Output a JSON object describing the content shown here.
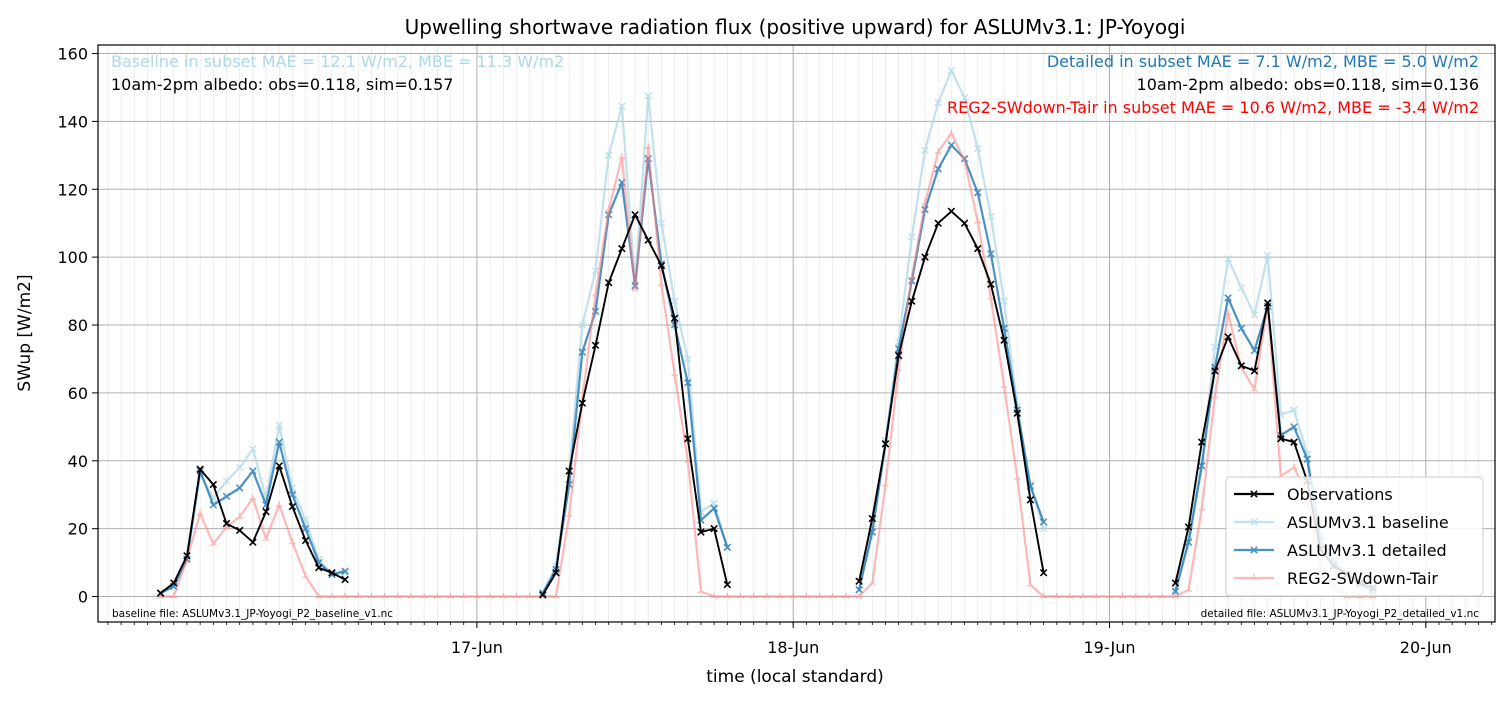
{
  "chart_data": {
    "type": "line",
    "title": "Upwelling shortwave radiation flux (positive upward) for ASLUMv3.1: JP-Yoyogi",
    "xlabel": "time (local standard)",
    "ylabel": "SWup [W/m2]",
    "x_unit": "hours",
    "x_ticks": [
      {
        "label": "17-Jun",
        "value": 24
      },
      {
        "label": "18-Jun",
        "value": 48
      },
      {
        "label": "19-Jun",
        "value": 72
      },
      {
        "label": "20-Jun",
        "value": 96
      }
    ],
    "xlim": [
      -4.75,
      101.25
    ],
    "ylim": [
      -7.5,
      162.5
    ],
    "y_ticks": [
      0,
      20,
      40,
      60,
      80,
      100,
      120,
      140,
      160
    ],
    "grid": true,
    "legend_position": "lower right",
    "annotations": {
      "top_left_1": "Baseline in subset MAE = 12.1 W/m2, MBE = 11.3 W/m2",
      "top_left_2": "10am-2pm albedo: obs=0.118, sim=0.157",
      "top_right_1": "Detailed in subset MAE = 7.1 W/m2, MBE = 5.0 W/m2",
      "top_right_2": "10am-2pm albedo: obs=0.118, sim=0.136",
      "top_right_3": "REG2-SWdown-Tair in subset MAE = 10.6 W/m2, MBE = -3.4 W/m2",
      "bottom_left": "baseline file: ASLUMv3.1_JP-Yoyogi_P2_baseline_v1.nc",
      "bottom_right": "detailed file: ASLUMv3.1_JP-Yoyogi_P2_detailed_v1.nc"
    },
    "series": [
      {
        "name": "Observations",
        "color": "#000000",
        "alpha": 1.0,
        "marker": "x",
        "points": [
          [
            0,
            1
          ],
          [
            1,
            4
          ],
          [
            2,
            12
          ],
          [
            3,
            37.5
          ],
          [
            4,
            33
          ],
          [
            5,
            21.5
          ],
          [
            6,
            19.5
          ],
          [
            7,
            16
          ],
          [
            8,
            25
          ],
          [
            9,
            38.5
          ],
          [
            10,
            26.5
          ],
          [
            11,
            16.5
          ],
          [
            12,
            8.5
          ],
          [
            13,
            7
          ],
          [
            14,
            5
          ],
          [
            29,
            0.5
          ],
          [
            30,
            7
          ],
          [
            31,
            37
          ],
          [
            32,
            57
          ],
          [
            33,
            74
          ],
          [
            34,
            92.5
          ],
          [
            35,
            102.5
          ],
          [
            36,
            112.5
          ],
          [
            37,
            105
          ],
          [
            38,
            97.5
          ],
          [
            39,
            82
          ],
          [
            40,
            46.5
          ],
          [
            41,
            19
          ],
          [
            42,
            20
          ],
          [
            43,
            3.5
          ],
          [
            53,
            4.5
          ],
          [
            54,
            23
          ],
          [
            55,
            45
          ],
          [
            56,
            71
          ],
          [
            57,
            87
          ],
          [
            58,
            100
          ],
          [
            59,
            110
          ],
          [
            60,
            113.5
          ],
          [
            61,
            110
          ],
          [
            62,
            102.5
          ],
          [
            63,
            92
          ],
          [
            64,
            75.5
          ],
          [
            65,
            54
          ],
          [
            66,
            28.5
          ],
          [
            67,
            7
          ],
          [
            77,
            4
          ],
          [
            78,
            20.5
          ],
          [
            79,
            45.5
          ],
          [
            80,
            66.5
          ],
          [
            81,
            76.5
          ],
          [
            82,
            68
          ],
          [
            83,
            66.5
          ],
          [
            84,
            86.5
          ],
          [
            85,
            46.5
          ],
          [
            86,
            45.5
          ],
          [
            87,
            34
          ],
          [
            88,
            14
          ],
          [
            89,
            9
          ],
          [
            90,
            6.5
          ],
          [
            91,
            4
          ],
          [
            92,
            2.5
          ]
        ]
      },
      {
        "name": "ASLUMv3.1 baseline",
        "color": "#add8e6",
        "alpha": 0.75,
        "marker": "x",
        "points": [
          [
            0,
            1
          ],
          [
            1,
            3
          ],
          [
            2,
            11
          ],
          [
            3,
            36
          ],
          [
            4,
            29
          ],
          [
            5,
            34
          ],
          [
            6,
            38
          ],
          [
            7,
            43.5
          ],
          [
            8,
            29
          ],
          [
            9,
            50.5
          ],
          [
            10,
            32
          ],
          [
            11,
            22.5
          ],
          [
            12,
            11
          ],
          [
            13,
            6.5
          ],
          [
            14,
            7
          ],
          [
            29,
            1
          ],
          [
            30,
            9
          ],
          [
            31,
            37
          ],
          [
            32,
            80
          ],
          [
            33,
            96
          ],
          [
            34,
            130
          ],
          [
            35,
            144.5
          ],
          [
            36,
            92
          ],
          [
            37,
            147.5
          ],
          [
            38,
            110
          ],
          [
            39,
            87
          ],
          [
            40,
            70
          ],
          [
            41,
            25
          ],
          [
            42,
            27.5
          ],
          [
            43,
            14.5
          ],
          [
            53,
            2
          ],
          [
            54,
            20
          ],
          [
            55,
            46
          ],
          [
            56,
            75
          ],
          [
            57,
            106
          ],
          [
            58,
            131.5
          ],
          [
            59,
            145.5
          ],
          [
            60,
            155
          ],
          [
            61,
            147
          ],
          [
            62,
            132
          ],
          [
            63,
            112
          ],
          [
            64,
            87
          ],
          [
            65,
            56
          ],
          [
            66,
            33
          ],
          [
            67,
            20
          ],
          [
            77,
            2
          ],
          [
            78,
            18
          ],
          [
            79,
            40
          ],
          [
            80,
            73.5
          ],
          [
            81,
            99.5
          ],
          [
            82,
            91
          ],
          [
            83,
            83
          ],
          [
            84,
            100.5
          ],
          [
            85,
            53.5
          ],
          [
            86,
            55
          ],
          [
            87,
            42
          ],
          [
            88,
            19
          ],
          [
            89,
            11.5
          ],
          [
            90,
            7.5
          ],
          [
            91,
            4
          ],
          [
            92,
            2
          ]
        ]
      },
      {
        "name": "ASLUMv3.1 detailed",
        "color": "#1f77b4",
        "alpha": 0.8,
        "marker": "x",
        "points": [
          [
            0,
            1
          ],
          [
            1,
            3
          ],
          [
            2,
            11
          ],
          [
            3,
            37
          ],
          [
            4,
            27
          ],
          [
            5,
            29.5
          ],
          [
            6,
            32
          ],
          [
            7,
            37
          ],
          [
            8,
            27
          ],
          [
            9,
            45.5
          ],
          [
            10,
            30
          ],
          [
            11,
            20
          ],
          [
            12,
            10
          ],
          [
            13,
            6.5
          ],
          [
            14,
            7.5
          ],
          [
            29,
            1
          ],
          [
            30,
            8
          ],
          [
            31,
            33
          ],
          [
            32,
            72
          ],
          [
            33,
            84
          ],
          [
            34,
            112.5
          ],
          [
            35,
            122
          ],
          [
            36,
            91.5
          ],
          [
            37,
            129
          ],
          [
            38,
            98
          ],
          [
            39,
            80
          ],
          [
            40,
            63
          ],
          [
            41,
            22.5
          ],
          [
            42,
            26
          ],
          [
            43,
            14.5
          ],
          [
            53,
            2
          ],
          [
            54,
            19
          ],
          [
            55,
            45
          ],
          [
            56,
            73
          ],
          [
            57,
            93
          ],
          [
            58,
            114
          ],
          [
            59,
            126
          ],
          [
            60,
            133
          ],
          [
            61,
            129
          ],
          [
            62,
            119
          ],
          [
            63,
            101
          ],
          [
            64,
            79
          ],
          [
            65,
            55
          ],
          [
            66,
            32.5
          ],
          [
            67,
            22
          ],
          [
            77,
            1.5
          ],
          [
            78,
            16
          ],
          [
            79,
            38.5
          ],
          [
            80,
            67.5
          ],
          [
            81,
            88
          ],
          [
            82,
            79
          ],
          [
            83,
            72.5
          ],
          [
            84,
            85.5
          ],
          [
            85,
            47.5
          ],
          [
            86,
            50
          ],
          [
            87,
            40.5
          ],
          [
            88,
            16.5
          ],
          [
            89,
            10
          ],
          [
            90,
            6.5
          ],
          [
            91,
            3.5
          ],
          [
            92,
            1.5
          ]
        ]
      },
      {
        "name": "REG2-SWdown-Tair",
        "color": "#ff7f7f",
        "alpha": 0.55,
        "marker": "tri",
        "points": [
          [
            0,
            0
          ],
          [
            1,
            0
          ],
          [
            2,
            11
          ],
          [
            3,
            24.5
          ],
          [
            4,
            15.5
          ],
          [
            5,
            20.5
          ],
          [
            6,
            23.5
          ],
          [
            7,
            29
          ],
          [
            8,
            17
          ],
          [
            9,
            27
          ],
          [
            10,
            16
          ],
          [
            11,
            6
          ],
          [
            12,
            0
          ],
          [
            13,
            0
          ],
          [
            14,
            0
          ],
          [
            15,
            0
          ],
          [
            16,
            0
          ],
          [
            17,
            0
          ],
          [
            18,
            0
          ],
          [
            19,
            0
          ],
          [
            20,
            0
          ],
          [
            21,
            0
          ],
          [
            22,
            0
          ],
          [
            23,
            0
          ],
          [
            24,
            0
          ],
          [
            25,
            0
          ],
          [
            26,
            0
          ],
          [
            27,
            0
          ],
          [
            28,
            0
          ],
          [
            29,
            0
          ],
          [
            30,
            0
          ],
          [
            31,
            24
          ],
          [
            32,
            58
          ],
          [
            33,
            89
          ],
          [
            34,
            114
          ],
          [
            35,
            129.5
          ],
          [
            36,
            90.5
          ],
          [
            37,
            132.5
          ],
          [
            38,
            92
          ],
          [
            39,
            65.5
          ],
          [
            40,
            40
          ],
          [
            41,
            1.5
          ],
          [
            42,
            0
          ],
          [
            43,
            0
          ],
          [
            44,
            0
          ],
          [
            45,
            0
          ],
          [
            46,
            0
          ],
          [
            47,
            0
          ],
          [
            48,
            0
          ],
          [
            49,
            0
          ],
          [
            50,
            0
          ],
          [
            51,
            0
          ],
          [
            52,
            0
          ],
          [
            53,
            0
          ],
          [
            54,
            4
          ],
          [
            55,
            33
          ],
          [
            56,
            67
          ],
          [
            57,
            94
          ],
          [
            58,
            116
          ],
          [
            59,
            131
          ],
          [
            60,
            136.5
          ],
          [
            61,
            128.5
          ],
          [
            62,
            110.5
          ],
          [
            63,
            88
          ],
          [
            64,
            62
          ],
          [
            65,
            35
          ],
          [
            66,
            3.5
          ],
          [
            67,
            0
          ],
          [
            68,
            0
          ],
          [
            69,
            0
          ],
          [
            70,
            0
          ],
          [
            71,
            0
          ],
          [
            72,
            0
          ],
          [
            73,
            0
          ],
          [
            74,
            0
          ],
          [
            75,
            0
          ],
          [
            76,
            0
          ],
          [
            77,
            0
          ],
          [
            78,
            2
          ],
          [
            79,
            26
          ],
          [
            80,
            59
          ],
          [
            81,
            83.5
          ],
          [
            82,
            67.5
          ],
          [
            83,
            61
          ],
          [
            84,
            86
          ],
          [
            85,
            35.5
          ],
          [
            86,
            38
          ],
          [
            87,
            30.5
          ],
          [
            88,
            9
          ],
          [
            89,
            3
          ],
          [
            90,
            0
          ],
          [
            91,
            0
          ],
          [
            92,
            0
          ]
        ]
      }
    ]
  }
}
